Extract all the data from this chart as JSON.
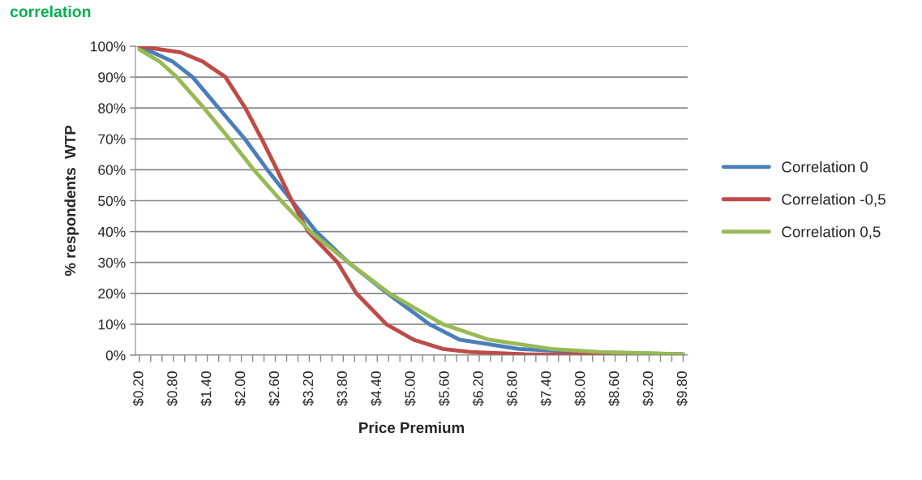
{
  "chart_data": {
    "type": "line",
    "title": "correlation",
    "xlabel": "Price Premium",
    "ylabel": "% respondents  WTP",
    "xlim": [
      0.13,
      9.88
    ],
    "ylim": [
      0,
      100
    ],
    "xticks": [
      {
        "value": 0.2,
        "label": "$0.20"
      },
      {
        "value": 0.4,
        "label": null
      },
      {
        "value": 0.6,
        "label": null
      },
      {
        "value": 0.8,
        "label": "$0.80"
      },
      {
        "value": 1.0,
        "label": null
      },
      {
        "value": 1.2,
        "label": null
      },
      {
        "value": 1.4,
        "label": "$1.40"
      },
      {
        "value": 1.6,
        "label": null
      },
      {
        "value": 1.8,
        "label": null
      },
      {
        "value": 2.0,
        "label": "$2.00"
      },
      {
        "value": 2.2,
        "label": null
      },
      {
        "value": 2.4,
        "label": null
      },
      {
        "value": 2.6,
        "label": "$2.60"
      },
      {
        "value": 2.8,
        "label": null
      },
      {
        "value": 3.0,
        "label": null
      },
      {
        "value": 3.2,
        "label": "$3.20"
      },
      {
        "value": 3.4,
        "label": null
      },
      {
        "value": 3.6,
        "label": null
      },
      {
        "value": 3.8,
        "label": "$3.80"
      },
      {
        "value": 4.0,
        "label": null
      },
      {
        "value": 4.2,
        "label": null
      },
      {
        "value": 4.4,
        "label": "$4.40"
      },
      {
        "value": 4.6,
        "label": null
      },
      {
        "value": 4.8,
        "label": null
      },
      {
        "value": 5.0,
        "label": "$5.00"
      },
      {
        "value": 5.2,
        "label": null
      },
      {
        "value": 5.4,
        "label": null
      },
      {
        "value": 5.6,
        "label": "$5.60"
      },
      {
        "value": 5.8,
        "label": null
      },
      {
        "value": 6.0,
        "label": null
      },
      {
        "value": 6.2,
        "label": "$6.20"
      },
      {
        "value": 6.4,
        "label": null
      },
      {
        "value": 6.6,
        "label": null
      },
      {
        "value": 6.8,
        "label": "$6.80"
      },
      {
        "value": 7.0,
        "label": null
      },
      {
        "value": 7.2,
        "label": null
      },
      {
        "value": 7.4,
        "label": "$7.40"
      },
      {
        "value": 7.6,
        "label": null
      },
      {
        "value": 7.8,
        "label": null
      },
      {
        "value": 8.0,
        "label": "$8.00"
      },
      {
        "value": 8.2,
        "label": null
      },
      {
        "value": 8.4,
        "label": null
      },
      {
        "value": 8.6,
        "label": "$8.60"
      },
      {
        "value": 8.8,
        "label": null
      },
      {
        "value": 9.0,
        "label": null
      },
      {
        "value": 9.2,
        "label": "$9.20"
      },
      {
        "value": 9.4,
        "label": null
      },
      {
        "value": 9.6,
        "label": null
      },
      {
        "value": 9.8,
        "label": "$9.80"
      }
    ],
    "yticks": [
      {
        "value": 0,
        "label": "0%"
      },
      {
        "value": 10,
        "label": "10%"
      },
      {
        "value": 20,
        "label": "20%"
      },
      {
        "value": 30,
        "label": "30%"
      },
      {
        "value": 40,
        "label": "40%"
      },
      {
        "value": 50,
        "label": "50%"
      },
      {
        "value": 60,
        "label": "60%"
      },
      {
        "value": 70,
        "label": "70%"
      },
      {
        "value": 80,
        "label": "80%"
      },
      {
        "value": 90,
        "label": "90%"
      },
      {
        "value": 100,
        "label": "100%"
      }
    ],
    "grid": "y",
    "legend": "right",
    "marker": "none",
    "line_style": "solid",
    "series": [
      {
        "name": "Correlation 0",
        "color": "#4a7ebb",
        "x": [
          0.2,
          0.79,
          1.14,
          1.6,
          2.06,
          2.46,
          2.89,
          3.32,
          3.89,
          4.58,
          5.32,
          5.85,
          6.9,
          8.0,
          9.8
        ],
        "values": [
          100,
          95,
          90,
          80,
          70,
          60,
          50,
          40,
          30,
          20,
          10,
          5,
          2,
          1,
          0.3
        ]
      },
      {
        "name": "Correlation -0,5",
        "color": "#be4b48",
        "x": [
          0.2,
          0.93,
          1.32,
          1.72,
          2.07,
          2.36,
          2.63,
          2.89,
          3.18,
          3.7,
          4.03,
          4.56,
          5.04,
          5.56,
          6.04,
          7.0,
          9.8
        ],
        "values": [
          100,
          98,
          95,
          90,
          80,
          70,
          60,
          50,
          40,
          30,
          20,
          10,
          5,
          2,
          1,
          0.3,
          0
        ]
      },
      {
        "name": "Correlation 0,5",
        "color": "#98b954",
        "x": [
          0.2,
          0.56,
          0.86,
          1.34,
          1.79,
          2.22,
          2.7,
          3.22,
          3.89,
          4.61,
          5.56,
          6.37,
          7.47,
          8.33,
          9.8
        ],
        "values": [
          99,
          95,
          90,
          80,
          70,
          60,
          50,
          40,
          30,
          20,
          10,
          5,
          2,
          1,
          0.3
        ]
      }
    ]
  }
}
